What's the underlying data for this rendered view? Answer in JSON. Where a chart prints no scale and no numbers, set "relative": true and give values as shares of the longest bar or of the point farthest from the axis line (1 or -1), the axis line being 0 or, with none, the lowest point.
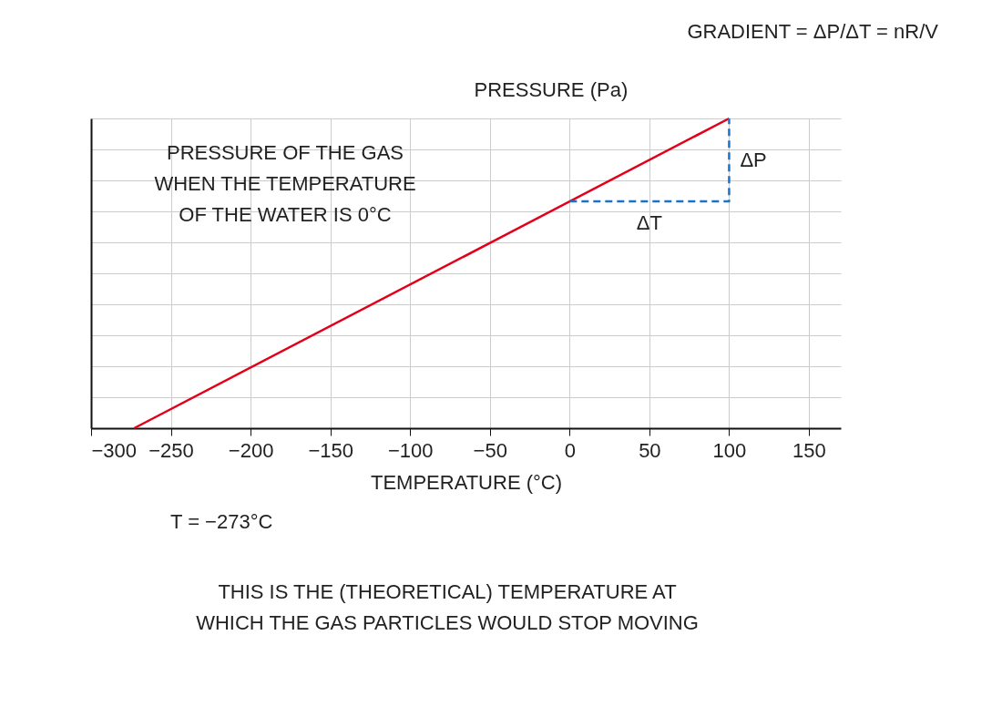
{
  "chart_data": {
    "type": "line",
    "relative": true,
    "xlabel": "TEMPERATURE (°C)",
    "ylabel": "PRESSURE (Pa)",
    "xlim": [
      -300,
      170
    ],
    "xticks": [
      -300,
      -250,
      -200,
      -150,
      -100,
      -50,
      0,
      50,
      100,
      150
    ],
    "grid": true,
    "series": [
      {
        "color": "#e3001b",
        "x": [
          -273,
          100
        ],
        "values": [
          0,
          1
        ]
      },
      {
        "color": "#1a73c8",
        "x": [
          0,
          100,
          100
        ],
        "values": [
          0.732,
          0.732,
          1
        ],
        "line_style": "dashed"
      }
    ],
    "annotations": [
      "PRESSURE OF THE GAS\nWHEN THE TEMPERATURE\nOF THE WATER IS 0°C",
      "GRADIENT = ΔP/ΔT = nR/V",
      {
        "text": "ΔP",
        "x": 100,
        "y": 0.866
      },
      {
        "text": "ΔT",
        "x": 50,
        "y": 0.732
      },
      "T = −273°C",
      "THIS IS THE (THEORETICAL) TEMPERATURE AT\nWHICH THE GAS PARTICLES WOULD STOP MOVING"
    ]
  }
}
